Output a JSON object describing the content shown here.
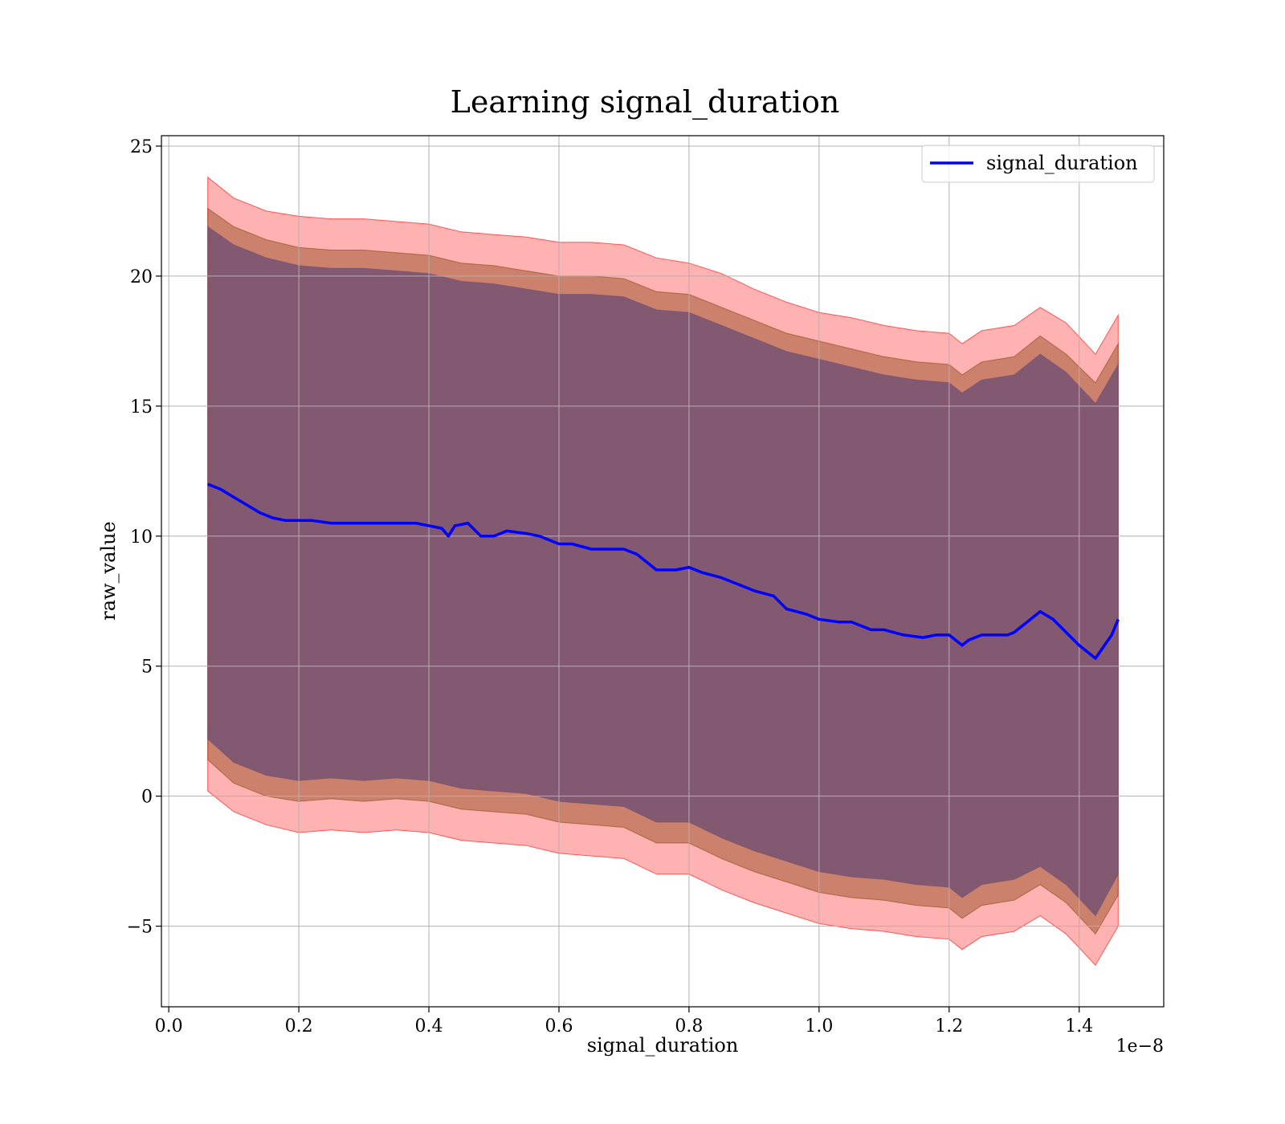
{
  "chart_data": {
    "type": "line",
    "title": "Learning signal_duration",
    "xlabel": "signal_duration",
    "ylabel": "raw_value",
    "x_offset_text": "1e−8",
    "xlim": [
      -0.0113,
      1.53
    ],
    "ylim": [
      -8.1,
      25.4
    ],
    "x_ticks": [
      0.0,
      0.2,
      0.4,
      0.6,
      0.8,
      1.0,
      1.2,
      1.4
    ],
    "x_tick_labels": [
      "0.0",
      "0.2",
      "0.4",
      "0.6",
      "0.8",
      "1.0",
      "1.2",
      "1.4"
    ],
    "y_ticks": [
      -5,
      0,
      5,
      10,
      15,
      20,
      25
    ],
    "y_tick_labels": [
      "−5",
      "0",
      "5",
      "10",
      "15",
      "20",
      "25"
    ],
    "grid": true,
    "legend_position": "top-right",
    "series": [
      {
        "name": "signal_duration",
        "color": "#0000ff",
        "x": [
          0.06,
          0.08,
          0.1,
          0.12,
          0.14,
          0.16,
          0.18,
          0.2,
          0.22,
          0.25,
          0.28,
          0.3,
          0.33,
          0.36,
          0.38,
          0.4,
          0.42,
          0.43,
          0.44,
          0.46,
          0.48,
          0.5,
          0.52,
          0.55,
          0.57,
          0.6,
          0.62,
          0.65,
          0.68,
          0.7,
          0.72,
          0.75,
          0.78,
          0.8,
          0.82,
          0.85,
          0.88,
          0.9,
          0.93,
          0.95,
          0.98,
          1.0,
          1.03,
          1.05,
          1.08,
          1.1,
          1.13,
          1.16,
          1.18,
          1.2,
          1.22,
          1.23,
          1.25,
          1.27,
          1.29,
          1.3,
          1.34,
          1.36,
          1.38,
          1.4,
          1.425,
          1.45,
          1.46
        ],
        "values": [
          12.0,
          11.8,
          11.5,
          11.2,
          10.9,
          10.7,
          10.6,
          10.6,
          10.6,
          10.5,
          10.5,
          10.5,
          10.5,
          10.5,
          10.5,
          10.4,
          10.3,
          10.0,
          10.4,
          10.5,
          10.0,
          10.0,
          10.2,
          10.1,
          10.0,
          9.7,
          9.7,
          9.5,
          9.5,
          9.5,
          9.3,
          8.7,
          8.7,
          8.8,
          8.6,
          8.4,
          8.1,
          7.9,
          7.7,
          7.2,
          7.0,
          6.8,
          6.7,
          6.7,
          6.4,
          6.4,
          6.2,
          6.1,
          6.2,
          6.2,
          5.8,
          6.0,
          6.2,
          6.2,
          6.2,
          6.3,
          7.1,
          6.8,
          6.3,
          5.8,
          5.3,
          6.2,
          6.8
        ]
      }
    ],
    "bands": [
      {
        "color": "#ff0000",
        "opacity": 0.3,
        "x": [
          0.06,
          0.1,
          0.15,
          0.2,
          0.25,
          0.3,
          0.35,
          0.4,
          0.45,
          0.5,
          0.55,
          0.6,
          0.65,
          0.7,
          0.75,
          0.8,
          0.85,
          0.9,
          0.95,
          1.0,
          1.05,
          1.1,
          1.15,
          1.2,
          1.22,
          1.25,
          1.3,
          1.34,
          1.38,
          1.425,
          1.46
        ],
        "upper": [
          23.8,
          23.0,
          22.5,
          22.3,
          22.2,
          22.2,
          22.1,
          22.0,
          21.7,
          21.6,
          21.5,
          21.3,
          21.3,
          21.2,
          20.7,
          20.5,
          20.1,
          19.5,
          19.0,
          18.6,
          18.4,
          18.1,
          17.9,
          17.8,
          17.4,
          17.9,
          18.1,
          18.8,
          18.2,
          17.0,
          18.5
        ],
        "lower": [
          0.2,
          -0.6,
          -1.1,
          -1.4,
          -1.3,
          -1.4,
          -1.3,
          -1.4,
          -1.7,
          -1.8,
          -1.9,
          -2.2,
          -2.3,
          -2.4,
          -3.0,
          -3.0,
          -3.6,
          -4.1,
          -4.5,
          -4.9,
          -5.1,
          -5.2,
          -5.4,
          -5.5,
          -5.9,
          -5.4,
          -5.2,
          -4.6,
          -5.3,
          -6.5,
          -5.0
        ]
      },
      {
        "color": "#8b4513",
        "opacity": 0.45,
        "x": [
          0.06,
          0.1,
          0.15,
          0.2,
          0.25,
          0.3,
          0.35,
          0.4,
          0.45,
          0.5,
          0.55,
          0.6,
          0.65,
          0.7,
          0.75,
          0.8,
          0.85,
          0.9,
          0.95,
          1.0,
          1.05,
          1.1,
          1.15,
          1.2,
          1.22,
          1.25,
          1.3,
          1.34,
          1.38,
          1.425,
          1.46
        ],
        "upper": [
          22.6,
          21.9,
          21.4,
          21.1,
          21.0,
          21.0,
          20.9,
          20.8,
          20.5,
          20.4,
          20.2,
          20.0,
          20.0,
          19.9,
          19.4,
          19.3,
          18.8,
          18.3,
          17.8,
          17.5,
          17.2,
          16.9,
          16.7,
          16.6,
          16.2,
          16.7,
          16.9,
          17.7,
          17.0,
          15.9,
          17.4
        ],
        "lower": [
          1.4,
          0.5,
          0.0,
          -0.2,
          -0.1,
          -0.2,
          -0.1,
          -0.2,
          -0.5,
          -0.6,
          -0.7,
          -1.0,
          -1.1,
          -1.2,
          -1.8,
          -1.8,
          -2.4,
          -2.9,
          -3.3,
          -3.7,
          -3.9,
          -4.0,
          -4.2,
          -4.3,
          -4.7,
          -4.2,
          -4.0,
          -3.4,
          -4.1,
          -5.3,
          -3.8
        ]
      },
      {
        "color": "#6b4c74",
        "opacity": 0.75,
        "x": [
          0.06,
          0.1,
          0.15,
          0.2,
          0.25,
          0.3,
          0.35,
          0.4,
          0.45,
          0.5,
          0.55,
          0.6,
          0.65,
          0.7,
          0.75,
          0.8,
          0.85,
          0.9,
          0.95,
          1.0,
          1.05,
          1.1,
          1.15,
          1.2,
          1.22,
          1.25,
          1.3,
          1.34,
          1.38,
          1.425,
          1.46
        ],
        "upper": [
          21.9,
          21.2,
          20.7,
          20.4,
          20.3,
          20.3,
          20.2,
          20.1,
          19.8,
          19.7,
          19.5,
          19.3,
          19.3,
          19.2,
          18.7,
          18.6,
          18.1,
          17.6,
          17.1,
          16.8,
          16.5,
          16.2,
          16.0,
          15.9,
          15.5,
          16.0,
          16.2,
          17.0,
          16.3,
          15.1,
          16.6
        ],
        "lower": [
          2.2,
          1.3,
          0.8,
          0.6,
          0.7,
          0.6,
          0.7,
          0.6,
          0.3,
          0.2,
          0.1,
          -0.2,
          -0.3,
          -0.4,
          -1.0,
          -1.0,
          -1.6,
          -2.1,
          -2.5,
          -2.9,
          -3.1,
          -3.2,
          -3.4,
          -3.5,
          -3.9,
          -3.4,
          -3.2,
          -2.7,
          -3.4,
          -4.6,
          -3.0
        ]
      }
    ]
  }
}
